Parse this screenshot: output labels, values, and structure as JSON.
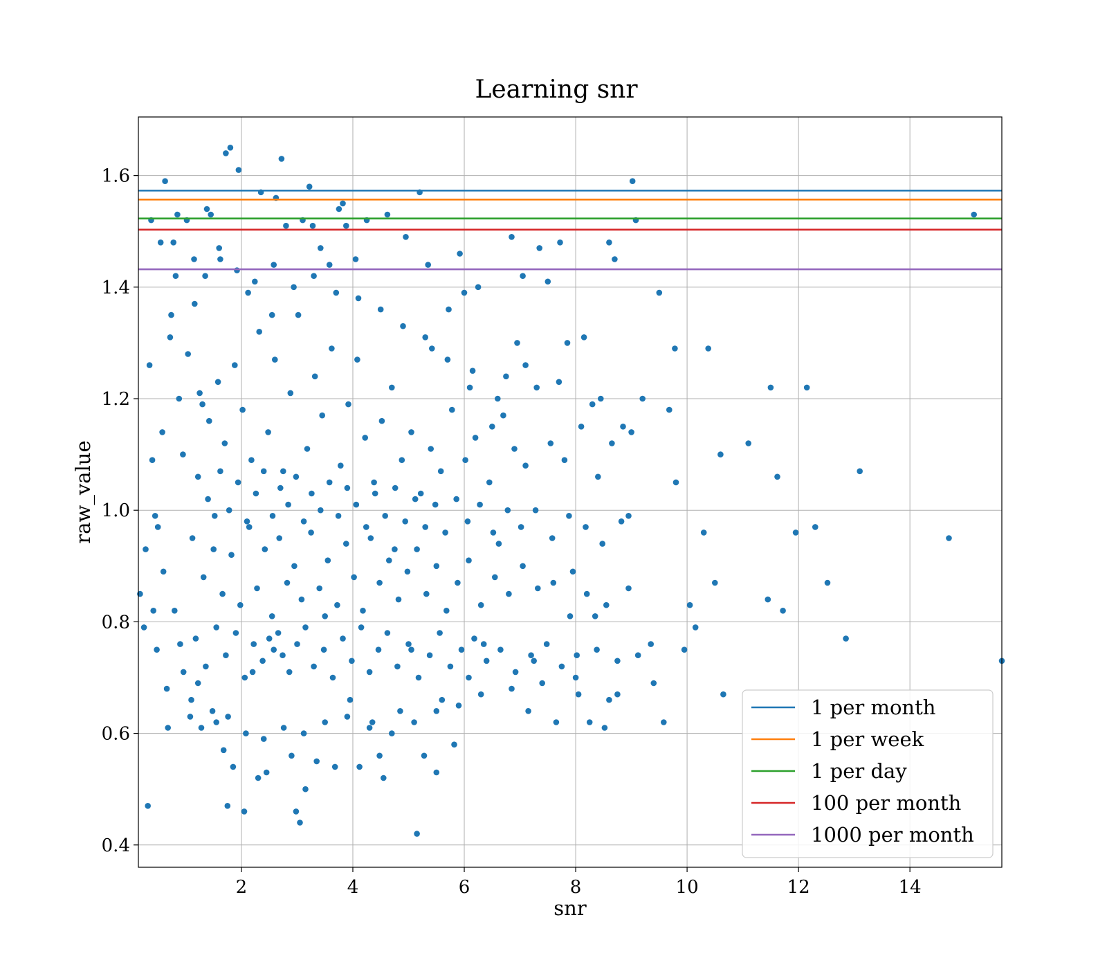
{
  "chart_data": {
    "type": "scatter",
    "title": "Learning snr",
    "xlabel": "snr",
    "ylabel": "raw_value",
    "xlim": [
      0.15,
      15.65
    ],
    "ylim": [
      0.36,
      1.705
    ],
    "xticks": [
      2,
      4,
      6,
      8,
      10,
      12,
      14
    ],
    "yticks": [
      0.4,
      0.6,
      0.8,
      1.0,
      1.2,
      1.4,
      1.6
    ],
    "xtick_labels": [
      "2",
      "4",
      "6",
      "8",
      "10",
      "12",
      "14"
    ],
    "ytick_labels": [
      "0.4",
      "0.6",
      "0.8",
      "1.0",
      "1.2",
      "1.4",
      "1.6"
    ],
    "grid": true,
    "legend_position": "lower right",
    "marker_color": "#1f77b4",
    "scatter_points": [
      [
        0.18,
        0.85
      ],
      [
        0.25,
        0.79
      ],
      [
        0.32,
        0.47
      ],
      [
        0.35,
        1.26
      ],
      [
        0.38,
        1.52
      ],
      [
        0.42,
        0.82
      ],
      [
        0.45,
        0.99
      ],
      [
        0.5,
        0.97
      ],
      [
        0.55,
        1.48
      ],
      [
        0.6,
        0.89
      ],
      [
        0.63,
        1.59
      ],
      [
        0.68,
        0.61
      ],
      [
        0.72,
        1.31
      ],
      [
        0.78,
        1.48
      ],
      [
        0.82,
        1.42
      ],
      [
        0.85,
        1.53
      ],
      [
        0.9,
        0.76
      ],
      [
        0.95,
        1.1
      ],
      [
        1.02,
        1.52
      ],
      [
        1.08,
        0.63
      ],
      [
        1.15,
        1.45
      ],
      [
        1.22,
        0.69
      ],
      [
        1.3,
        1.19
      ],
      [
        1.38,
        1.54
      ],
      [
        1.45,
        1.53
      ],
      [
        1.5,
        0.93
      ],
      [
        1.55,
        0.62
      ],
      [
        1.6,
        1.47
      ],
      [
        1.68,
        0.57
      ],
      [
        1.72,
        1.64
      ],
      [
        1.75,
        0.47
      ],
      [
        1.8,
        1.65
      ],
      [
        1.85,
        0.54
      ],
      [
        1.95,
        1.61
      ],
      [
        2.05,
        0.46
      ],
      [
        2.12,
        1.39
      ],
      [
        2.2,
        0.71
      ],
      [
        2.3,
        0.52
      ],
      [
        2.35,
        1.57
      ],
      [
        2.45,
        0.53
      ],
      [
        2.55,
        1.35
      ],
      [
        2.62,
        1.56
      ],
      [
        2.72,
        1.63
      ],
      [
        2.8,
        1.51
      ],
      [
        2.9,
        0.56
      ],
      [
        2.98,
        0.46
      ],
      [
        3.05,
        0.44
      ],
      [
        3.1,
        1.52
      ],
      [
        3.15,
        0.5
      ],
      [
        3.22,
        1.58
      ],
      [
        3.28,
        1.51
      ],
      [
        3.35,
        0.55
      ],
      [
        3.42,
        1.47
      ],
      [
        3.5,
        0.81
      ],
      [
        3.58,
        1.44
      ],
      [
        3.68,
        0.54
      ],
      [
        3.75,
        1.54
      ],
      [
        3.82,
        1.55
      ],
      [
        3.88,
        1.51
      ],
      [
        3.95,
        0.66
      ],
      [
        4.05,
        1.45
      ],
      [
        4.12,
        0.54
      ],
      [
        4.25,
        1.52
      ],
      [
        4.35,
        0.62
      ],
      [
        4.48,
        0.56
      ],
      [
        4.55,
        0.52
      ],
      [
        4.62,
        1.53
      ],
      [
        4.75,
        0.93
      ],
      [
        4.85,
        0.64
      ],
      [
        4.95,
        1.49
      ],
      [
        5.05,
        0.75
      ],
      [
        5.15,
        0.42
      ],
      [
        5.2,
        1.57
      ],
      [
        5.28,
        0.56
      ],
      [
        5.35,
        1.44
      ],
      [
        5.42,
        1.29
      ],
      [
        5.5,
        0.53
      ],
      [
        5.6,
        0.66
      ],
      [
        5.72,
        1.36
      ],
      [
        5.82,
        0.58
      ],
      [
        5.92,
        1.46
      ],
      [
        6.0,
        1.39
      ],
      [
        6.08,
        0.7
      ],
      [
        6.15,
        1.25
      ],
      [
        6.25,
        1.4
      ],
      [
        6.35,
        0.76
      ],
      [
        6.5,
        1.15
      ],
      [
        6.62,
        0.94
      ],
      [
        6.75,
        1.24
      ],
      [
        6.85,
        1.49
      ],
      [
        6.95,
        1.3
      ],
      [
        7.05,
        1.42
      ],
      [
        7.15,
        0.64
      ],
      [
        7.25,
        0.73
      ],
      [
        7.35,
        1.47
      ],
      [
        7.5,
        1.41
      ],
      [
        7.65,
        0.62
      ],
      [
        7.72,
        1.48
      ],
      [
        7.85,
        1.3
      ],
      [
        7.95,
        0.89
      ],
      [
        8.05,
        0.67
      ],
      [
        8.15,
        1.31
      ],
      [
        8.25,
        0.62
      ],
      [
        8.35,
        0.81
      ],
      [
        8.45,
        1.2
      ],
      [
        8.52,
        0.61
      ],
      [
        8.6,
        1.48
      ],
      [
        8.7,
        1.45
      ],
      [
        8.75,
        0.67
      ],
      [
        8.85,
        1.15
      ],
      [
        8.95,
        0.99
      ],
      [
        9.02,
        1.59
      ],
      [
        9.08,
        1.52
      ],
      [
        9.2,
        1.2
      ],
      [
        9.35,
        0.76
      ],
      [
        9.5,
        1.39
      ],
      [
        9.58,
        0.62
      ],
      [
        9.68,
        1.18
      ],
      [
        9.78,
        1.29
      ],
      [
        9.95,
        0.75
      ],
      [
        10.05,
        0.83
      ],
      [
        10.15,
        0.79
      ],
      [
        10.38,
        1.29
      ],
      [
        10.5,
        0.87
      ],
      [
        10.65,
        0.67
      ],
      [
        11.1,
        1.12
      ],
      [
        11.45,
        0.84
      ],
      [
        11.5,
        1.22
      ],
      [
        11.62,
        1.06
      ],
      [
        11.72,
        0.82
      ],
      [
        11.95,
        0.96
      ],
      [
        12.15,
        1.22
      ],
      [
        12.3,
        0.97
      ],
      [
        12.52,
        0.87
      ],
      [
        12.85,
        0.77
      ],
      [
        13.1,
        1.07
      ],
      [
        14.7,
        0.95
      ],
      [
        15.15,
        1.53
      ],
      [
        15.65,
        0.73
      ],
      [
        1.25,
        1.21
      ],
      [
        1.42,
        1.16
      ],
      [
        1.58,
        1.23
      ],
      [
        1.7,
        1.12
      ],
      [
        1.88,
        1.26
      ],
      [
        2.02,
        1.18
      ],
      [
        2.18,
        1.09
      ],
      [
        2.32,
        1.32
      ],
      [
        2.48,
        1.14
      ],
      [
        2.6,
        1.27
      ],
      [
        2.75,
        1.07
      ],
      [
        2.88,
        1.21
      ],
      [
        3.02,
        1.35
      ],
      [
        3.18,
        1.11
      ],
      [
        3.32,
        1.24
      ],
      [
        3.45,
        1.17
      ],
      [
        3.62,
        1.29
      ],
      [
        3.78,
        1.08
      ],
      [
        3.92,
        1.19
      ],
      [
        4.08,
        1.27
      ],
      [
        4.22,
        1.13
      ],
      [
        4.38,
        1.05
      ],
      [
        4.52,
        1.16
      ],
      [
        4.7,
        1.22
      ],
      [
        4.88,
        1.09
      ],
      [
        5.05,
        1.14
      ],
      [
        5.22,
        1.03
      ],
      [
        5.4,
        1.11
      ],
      [
        5.58,
        1.07
      ],
      [
        5.78,
        1.18
      ],
      [
        6.02,
        1.09
      ],
      [
        6.2,
        1.13
      ],
      [
        6.45,
        1.05
      ],
      [
        6.7,
        1.17
      ],
      [
        6.9,
        1.11
      ],
      [
        7.1,
        1.08
      ],
      [
        7.3,
        1.22
      ],
      [
        7.55,
        1.12
      ],
      [
        7.8,
        1.09
      ],
      [
        8.1,
        1.15
      ],
      [
        8.4,
        1.06
      ],
      [
        8.65,
        1.12
      ],
      [
        1.12,
        0.95
      ],
      [
        1.32,
        0.88
      ],
      [
        1.52,
        0.99
      ],
      [
        1.66,
        0.85
      ],
      [
        1.82,
        0.92
      ],
      [
        1.98,
        0.83
      ],
      [
        2.14,
        0.97
      ],
      [
        2.28,
        0.86
      ],
      [
        2.42,
        0.93
      ],
      [
        2.55,
        0.81
      ],
      [
        2.68,
        0.95
      ],
      [
        2.82,
        0.87
      ],
      [
        2.95,
        0.9
      ],
      [
        3.08,
        0.84
      ],
      [
        3.25,
        0.96
      ],
      [
        3.4,
        0.86
      ],
      [
        3.55,
        0.91
      ],
      [
        3.72,
        0.83
      ],
      [
        3.88,
        0.94
      ],
      [
        4.02,
        0.88
      ],
      [
        4.18,
        0.82
      ],
      [
        4.32,
        0.95
      ],
      [
        4.48,
        0.87
      ],
      [
        4.65,
        0.91
      ],
      [
        4.82,
        0.84
      ],
      [
        4.98,
        0.89
      ],
      [
        5.15,
        0.93
      ],
      [
        5.32,
        0.85
      ],
      [
        5.5,
        0.9
      ],
      [
        5.68,
        0.82
      ],
      [
        5.88,
        0.87
      ],
      [
        6.08,
        0.91
      ],
      [
        6.3,
        0.83
      ],
      [
        6.55,
        0.88
      ],
      [
        6.8,
        0.85
      ],
      [
        7.05,
        0.9
      ],
      [
        7.32,
        0.86
      ],
      [
        7.6,
        0.87
      ],
      [
        7.9,
        0.81
      ],
      [
        8.2,
        0.85
      ],
      [
        8.55,
        0.83
      ],
      [
        8.95,
        0.86
      ],
      [
        1.18,
        0.77
      ],
      [
        1.36,
        0.72
      ],
      [
        1.55,
        0.79
      ],
      [
        1.72,
        0.74
      ],
      [
        1.9,
        0.78
      ],
      [
        2.06,
        0.7
      ],
      [
        2.22,
        0.76
      ],
      [
        2.38,
        0.73
      ],
      [
        2.5,
        0.77
      ],
      [
        2.58,
        0.75
      ],
      [
        2.66,
        0.78
      ],
      [
        2.74,
        0.74
      ],
      [
        2.86,
        0.71
      ],
      [
        3.0,
        0.76
      ],
      [
        3.15,
        0.79
      ],
      [
        3.3,
        0.72
      ],
      [
        3.48,
        0.75
      ],
      [
        3.64,
        0.7
      ],
      [
        3.82,
        0.77
      ],
      [
        3.98,
        0.73
      ],
      [
        4.15,
        0.79
      ],
      [
        4.3,
        0.71
      ],
      [
        4.46,
        0.75
      ],
      [
        4.62,
        0.78
      ],
      [
        4.8,
        0.72
      ],
      [
        5.0,
        0.76
      ],
      [
        5.18,
        0.7
      ],
      [
        5.38,
        0.74
      ],
      [
        5.56,
        0.78
      ],
      [
        5.75,
        0.72
      ],
      [
        5.95,
        0.75
      ],
      [
        6.18,
        0.77
      ],
      [
        6.4,
        0.73
      ],
      [
        6.65,
        0.75
      ],
      [
        6.92,
        0.71
      ],
      [
        7.2,
        0.74
      ],
      [
        7.48,
        0.76
      ],
      [
        7.75,
        0.72
      ],
      [
        8.02,
        0.74
      ],
      [
        8.38,
        0.75
      ],
      [
        8.75,
        0.73
      ],
      [
        9.12,
        0.74
      ],
      [
        1.22,
        1.06
      ],
      [
        1.4,
        1.02
      ],
      [
        1.62,
        1.07
      ],
      [
        1.78,
        1.0
      ],
      [
        1.94,
        1.05
      ],
      [
        2.1,
        0.98
      ],
      [
        2.26,
        1.03
      ],
      [
        2.4,
        1.07
      ],
      [
        2.56,
        0.99
      ],
      [
        2.7,
        1.04
      ],
      [
        2.84,
        1.01
      ],
      [
        2.98,
        1.06
      ],
      [
        3.12,
        0.98
      ],
      [
        3.26,
        1.03
      ],
      [
        3.42,
        1.0
      ],
      [
        3.58,
        1.05
      ],
      [
        3.74,
        0.99
      ],
      [
        3.9,
        1.04
      ],
      [
        4.06,
        1.01
      ],
      [
        4.24,
        0.97
      ],
      [
        4.4,
        1.03
      ],
      [
        4.58,
        0.99
      ],
      [
        4.76,
        1.04
      ],
      [
        4.94,
        0.98
      ],
      [
        5.12,
        1.02
      ],
      [
        5.3,
        0.97
      ],
      [
        5.48,
        1.01
      ],
      [
        5.66,
        0.96
      ],
      [
        5.86,
        1.02
      ],
      [
        6.06,
        0.98
      ],
      [
        6.28,
        1.01
      ],
      [
        6.52,
        0.96
      ],
      [
        6.78,
        1.0
      ],
      [
        7.02,
        0.97
      ],
      [
        7.28,
        1.0
      ],
      [
        7.58,
        0.95
      ],
      [
        7.88,
        0.99
      ],
      [
        8.18,
        0.97
      ],
      [
        8.48,
        0.94
      ],
      [
        8.82,
        0.98
      ],
      [
        0.28,
        0.93
      ],
      [
        0.4,
        1.09
      ],
      [
        0.48,
        0.75
      ],
      [
        0.58,
        1.14
      ],
      [
        0.66,
        0.68
      ],
      [
        0.74,
        1.35
      ],
      [
        0.8,
        0.82
      ],
      [
        0.88,
        1.2
      ],
      [
        0.96,
        0.71
      ],
      [
        1.04,
        1.28
      ],
      [
        1.1,
        0.66
      ],
      [
        1.16,
        1.37
      ],
      [
        1.28,
        0.61
      ],
      [
        1.35,
        1.42
      ],
      [
        1.48,
        0.64
      ],
      [
        1.62,
        1.45
      ],
      [
        1.76,
        0.63
      ],
      [
        1.92,
        1.43
      ],
      [
        2.08,
        0.6
      ],
      [
        2.24,
        1.41
      ],
      [
        2.4,
        0.59
      ],
      [
        2.58,
        1.44
      ],
      [
        2.76,
        0.61
      ],
      [
        2.94,
        1.4
      ],
      [
        3.12,
        0.6
      ],
      [
        3.3,
        1.42
      ],
      [
        3.5,
        0.62
      ],
      [
        3.7,
        1.39
      ],
      [
        3.9,
        0.63
      ],
      [
        4.1,
        1.38
      ],
      [
        4.3,
        0.61
      ],
      [
        4.5,
        1.36
      ],
      [
        4.7,
        0.6
      ],
      [
        4.9,
        1.33
      ],
      [
        5.1,
        0.62
      ],
      [
        5.3,
        1.31
      ],
      [
        5.5,
        0.64
      ],
      [
        5.7,
        1.27
      ],
      [
        5.9,
        0.65
      ],
      [
        6.1,
        1.22
      ],
      [
        6.3,
        0.67
      ],
      [
        6.6,
        1.2
      ],
      [
        6.85,
        0.68
      ],
      [
        7.1,
        1.26
      ],
      [
        7.4,
        0.69
      ],
      [
        7.7,
        1.23
      ],
      [
        8.0,
        0.7
      ],
      [
        8.3,
        1.19
      ],
      [
        8.6,
        0.66
      ],
      [
        9.0,
        1.14
      ],
      [
        9.4,
        0.69
      ],
      [
        9.8,
        1.05
      ],
      [
        10.3,
        0.96
      ],
      [
        10.6,
        1.1
      ]
    ]
  },
  "reference_lines": [
    {
      "name": "1 per month",
      "value": 1.573,
      "color": "#1f77b4"
    },
    {
      "name": "1 per week",
      "value": 1.557,
      "color": "#ff7f0e"
    },
    {
      "name": "1 per day",
      "value": 1.523,
      "color": "#2ca02c"
    },
    {
      "name": "100 per month",
      "value": 1.503,
      "color": "#d62728"
    },
    {
      "name": "1000 per month",
      "value": 1.432,
      "color": "#9467bd"
    }
  ]
}
